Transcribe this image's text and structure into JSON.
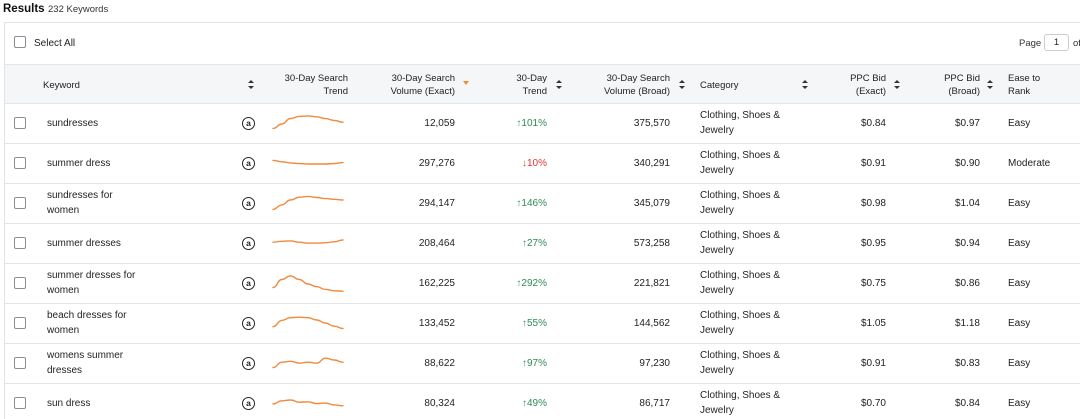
{
  "results": {
    "title": "Results",
    "count": "232 Keywords"
  },
  "toolbar": {
    "select_all": "Select All",
    "page_label": "Page",
    "page_value": "1",
    "page_of": "of"
  },
  "columns": {
    "keyword": "Keyword",
    "trend30": [
      "30-Day Search",
      "Trend"
    ],
    "volume_exact": [
      "30-Day Search",
      "Volume (Exact)"
    ],
    "trend_pct": [
      "30-Day",
      "Trend"
    ],
    "volume_broad": [
      "30-Day Search",
      "Volume (Broad)"
    ],
    "category": "Category",
    "ppc_exact": [
      "PPC Bid",
      "(Exact)"
    ],
    "ppc_broad": [
      "PPC Bid",
      "(Broad)"
    ],
    "ease": [
      "Ease to",
      "Rank"
    ]
  },
  "icons": {
    "checkbox": "checkbox-icon",
    "amazon": "amazon-logo-icon",
    "sort": "sort-icon",
    "arrow_up": "arrow-up-icon",
    "arrow_down": "arrow-down-icon"
  },
  "colors": {
    "sparkline": "#f08a3c",
    "up": "#2e8b57",
    "down": "#e03535",
    "header_bg": "#f5f6f8"
  },
  "rows": [
    {
      "keyword": [
        "sundresses"
      ],
      "spark": [
        0.25,
        0.5,
        0.8,
        0.92,
        0.95,
        0.9,
        0.8,
        0.7,
        0.6
      ],
      "volume_exact": "12,059",
      "trend_dir": "up",
      "trend_arrow": "↑",
      "trend": "101%",
      "volume_broad": "375,570",
      "category": [
        "Clothing, Shoes &",
        "Jewelry"
      ],
      "ppc_exact": "$0.84",
      "ppc_broad": "$0.97",
      "ease": "Easy"
    },
    {
      "keyword": [
        "summer dress"
      ],
      "spark": [
        0.7,
        0.62,
        0.56,
        0.52,
        0.5,
        0.5,
        0.5,
        0.53,
        0.58
      ],
      "volume_exact": "297,276",
      "trend_dir": "down",
      "trend_arrow": "↓",
      "trend": "10%",
      "volume_broad": "340,291",
      "category": [
        "Clothing, Shoes &",
        "Jewelry"
      ],
      "ppc_exact": "$0.91",
      "ppc_broad": "$0.90",
      "ease": "Moderate"
    },
    {
      "keyword": [
        "sundresses for",
        "women"
      ],
      "spark": [
        0.2,
        0.45,
        0.72,
        0.88,
        0.92,
        0.86,
        0.8,
        0.76,
        0.72
      ],
      "volume_exact": "294,147",
      "trend_dir": "up",
      "trend_arrow": "↑",
      "trend": "146%",
      "volume_broad": "345,079",
      "category": [
        "Clothing, Shoes &",
        "Jewelry"
      ],
      "ppc_exact": "$0.98",
      "ppc_broad": "$1.04",
      "ease": "Easy"
    },
    {
      "keyword": [
        "summer dresses"
      ],
      "spark": [
        0.6,
        0.65,
        0.67,
        0.6,
        0.55,
        0.55,
        0.57,
        0.62,
        0.72
      ],
      "volume_exact": "208,464",
      "trend_dir": "up",
      "trend_arrow": "↑",
      "trend": "27%",
      "volume_broad": "573,258",
      "category": [
        "Clothing, Shoes &",
        "Jewelry"
      ],
      "ppc_exact": "$0.95",
      "ppc_broad": "$0.94",
      "ease": "Easy"
    },
    {
      "keyword": [
        "summer dresses for",
        "women"
      ],
      "spark": [
        0.3,
        0.75,
        0.95,
        0.75,
        0.5,
        0.35,
        0.2,
        0.12,
        0.1
      ],
      "volume_exact": "162,225",
      "trend_dir": "up",
      "trend_arrow": "↑",
      "trend": "292%",
      "volume_broad": "221,821",
      "category": [
        "Clothing, Shoes &",
        "Jewelry"
      ],
      "ppc_exact": "$0.75",
      "ppc_broad": "$0.86",
      "ease": "Easy"
    },
    {
      "keyword": [
        "beach dresses for",
        "women"
      ],
      "spark": [
        0.35,
        0.7,
        0.85,
        0.88,
        0.85,
        0.72,
        0.55,
        0.38,
        0.25
      ],
      "volume_exact": "133,452",
      "trend_dir": "up",
      "trend_arrow": "↑",
      "trend": "55%",
      "volume_broad": "144,562",
      "category": [
        "Clothing, Shoes &",
        "Jewelry"
      ],
      "ppc_exact": "$1.05",
      "ppc_broad": "$1.18",
      "ease": "Easy"
    },
    {
      "keyword": [
        "womens summer",
        "dresses"
      ],
      "spark": [
        0.3,
        0.6,
        0.65,
        0.55,
        0.6,
        0.55,
        0.82,
        0.72,
        0.6
      ],
      "volume_exact": "88,622",
      "trend_dir": "up",
      "trend_arrow": "↑",
      "trend": "97%",
      "volume_broad": "97,230",
      "category": [
        "Clothing, Shoes &",
        "Jewelry"
      ],
      "ppc_exact": "$0.91",
      "ppc_broad": "$0.83",
      "ease": "Easy"
    },
    {
      "keyword": [
        "sun dress"
      ],
      "spark": [
        0.5,
        0.68,
        0.72,
        0.6,
        0.62,
        0.52,
        0.55,
        0.45,
        0.4
      ],
      "volume_exact": "80,324",
      "trend_dir": "up",
      "trend_arrow": "↑",
      "trend": "49%",
      "volume_broad": "86,717",
      "category": [
        "Clothing, Shoes &",
        "Jewelry"
      ],
      "ppc_exact": "$0.70",
      "ppc_broad": "$0.84",
      "ease": "Easy"
    }
  ]
}
